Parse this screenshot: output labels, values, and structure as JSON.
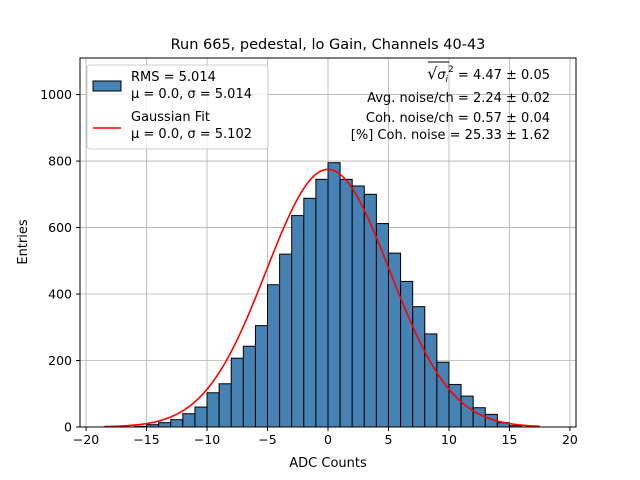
{
  "chart_data": {
    "type": "bar",
    "title": "Run 665, pedestal, lo Gain, Channels 40-43",
    "xlabel": "ADC Counts",
    "ylabel": "Entries",
    "xlim": [
      -20.5,
      20.5
    ],
    "ylim": [
      0,
      1110
    ],
    "xticks": [
      -20,
      -15,
      -10,
      -5,
      0,
      5,
      10,
      15,
      20
    ],
    "yticks": [
      0,
      200,
      400,
      600,
      800,
      1000
    ],
    "grid": true,
    "legend_position": "top-left",
    "bin_width": 1,
    "histogram": {
      "name": "RMS = 5.014\nμ = 0.0, σ = 5.014",
      "color": "#4682b4",
      "edgecolor": "#000000",
      "bin_left_edges": [
        -16,
        -15,
        -14,
        -13,
        -12,
        -11,
        -10,
        -9,
        -8,
        -7,
        -6,
        -5,
        -4,
        -3,
        -2,
        -1,
        0,
        1,
        2,
        3,
        4,
        5,
        6,
        7,
        8,
        9,
        10,
        11,
        12,
        13,
        14,
        15
      ],
      "values": [
        2,
        7,
        13,
        22,
        40,
        60,
        103,
        130,
        207,
        243,
        305,
        428,
        520,
        636,
        688,
        745,
        795,
        745,
        725,
        700,
        612,
        523,
        438,
        362,
        280,
        195,
        128,
        93,
        58,
        38,
        13,
        4
      ]
    },
    "fit": {
      "name": "Gaussian Fit\nμ = 0.0, σ = 5.102",
      "color": "#ff0000",
      "mu": 0.0,
      "sigma": 5.102,
      "amplitude": 775,
      "range": [
        -18.5,
        17.5
      ]
    },
    "annotations": {
      "line1_prefix": "√",
      "line1_symbol": "σ",
      "line1_sub": "i",
      "line1_sup": "2",
      "line1_value": " = 4.47 ± 0.05",
      "line2": "Avg. noise/ch = 2.24 ± 0.02",
      "line3": "Coh. noise/ch = 0.57 ± 0.04",
      "line4": "[%] Coh. noise = 25.33 ± 1.62"
    }
  }
}
